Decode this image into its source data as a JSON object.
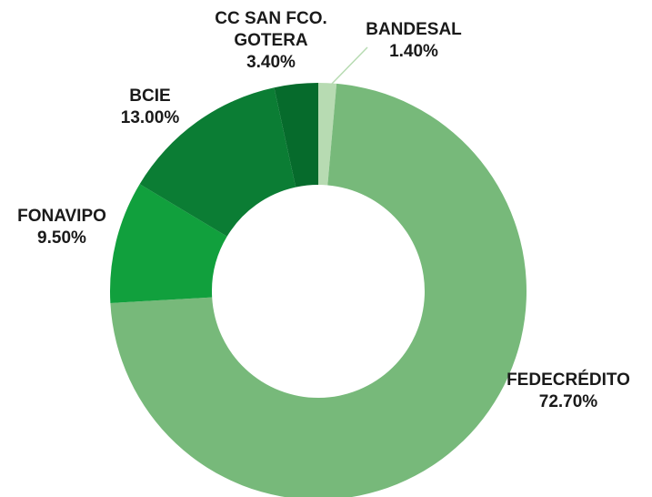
{
  "chart_data": {
    "type": "donut",
    "categories": [
      "BANDESAL",
      "FEDECRÉDITO",
      "FONAVIPO",
      "BCIE",
      "CC SAN FCO. GOTERA"
    ],
    "values": [
      1.4,
      72.7,
      9.5,
      13.0,
      3.4
    ],
    "value_labels": [
      "1.40%",
      "72.70%",
      "9.50%",
      "13.00%",
      "3.40%"
    ],
    "colors": [
      "#b7dbb2",
      "#77b97a",
      "#11a03d",
      "#0b7d34",
      "#066b2c"
    ]
  }
}
